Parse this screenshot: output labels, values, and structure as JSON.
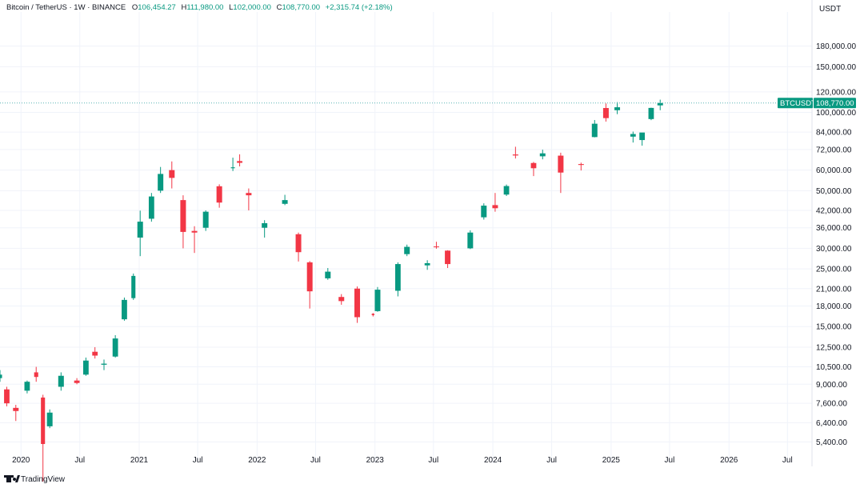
{
  "legend": {
    "symbol": "Bitcoin / TetherUS · 1W · BINANCE",
    "open_label": "O",
    "open": "106,454.27",
    "high_label": "H",
    "high": "111,980.00",
    "low_label": "L",
    "low": "102,000.00",
    "close_label": "C",
    "close": "108,770.00",
    "change": "+2,315.74 (+2.18%)"
  },
  "branding": {
    "label": "TradingView"
  },
  "price_tag": {
    "ticker": "BTCUSDT",
    "value": "108,770.00"
  },
  "colors": {
    "up": "#089981",
    "down": "#f23645",
    "grid": "#f0f3fa",
    "text": "#131722",
    "price_line": "#5ab4b4"
  },
  "chart_data": {
    "type": "candlestick",
    "y_scale": "log",
    "y_unit_label": "USDT",
    "ylim": [
      4600,
      235000
    ],
    "x_range": [
      "2019-10-28",
      "2026-09-15"
    ],
    "y_ticks": [
      {
        "value": 180000,
        "label": "180,000.00"
      },
      {
        "value": 150000,
        "label": "150,000.00"
      },
      {
        "value": 120000,
        "label": "120,000.00"
      },
      {
        "value": 100000,
        "label": "100,000.00"
      },
      {
        "value": 84000,
        "label": "84,000.00"
      },
      {
        "value": 72000,
        "label": "72,000.00"
      },
      {
        "value": 60000,
        "label": "60,000.00"
      },
      {
        "value": 50000,
        "label": "50,000.00"
      },
      {
        "value": 42000,
        "label": "42,000.00"
      },
      {
        "value": 36000,
        "label": "36,000.00"
      },
      {
        "value": 30000,
        "label": "30,000.00"
      },
      {
        "value": 25000,
        "label": "25,000.00"
      },
      {
        "value": 21000,
        "label": "21,000.00"
      },
      {
        "value": 18000,
        "label": "18,000.00"
      },
      {
        "value": 15000,
        "label": "15,000.00"
      },
      {
        "value": 12500,
        "label": "12,500.00"
      },
      {
        "value": 10500,
        "label": "10,500.00"
      },
      {
        "value": 9000,
        "label": "9,000.00"
      },
      {
        "value": 7600,
        "label": "7,600.00"
      },
      {
        "value": 6400,
        "label": "6,400.00"
      },
      {
        "value": 5400,
        "label": "5,400.00"
      }
    ],
    "x_ticks": [
      {
        "date": "2020-01-01",
        "label": "2020"
      },
      {
        "date": "2020-07-01",
        "label": "Jul"
      },
      {
        "date": "2021-01-01",
        "label": "2021"
      },
      {
        "date": "2021-07-01",
        "label": "Jul"
      },
      {
        "date": "2022-01-01",
        "label": "2022"
      },
      {
        "date": "2022-07-01",
        "label": "Jul"
      },
      {
        "date": "2023-01-01",
        "label": "2023"
      },
      {
        "date": "2023-07-01",
        "label": "Jul"
      },
      {
        "date": "2024-01-01",
        "label": "2024"
      },
      {
        "date": "2024-07-01",
        "label": "Jul"
      },
      {
        "date": "2025-01-01",
        "label": "2025"
      },
      {
        "date": "2025-07-01",
        "label": "Jul"
      },
      {
        "date": "2026-01-01",
        "label": "2026"
      },
      {
        "date": "2026-07-01",
        "label": "Jul"
      }
    ],
    "last_price": 108770,
    "candles": [
      {
        "date": "2019-10-28",
        "open": 9500,
        "high": 10200,
        "low": 9200,
        "close": 9800
      },
      {
        "date": "2019-11-18",
        "open": 8600,
        "high": 8800,
        "low": 7400,
        "close": 7600
      },
      {
        "date": "2019-12-16",
        "open": 7300,
        "high": 7500,
        "low": 6500,
        "close": 7100
      },
      {
        "date": "2020-01-20",
        "open": 8500,
        "high": 9300,
        "low": 8300,
        "close": 9200
      },
      {
        "date": "2020-02-17",
        "open": 10000,
        "high": 10500,
        "low": 9200,
        "close": 9600
      },
      {
        "date": "2020-03-09",
        "open": 8000,
        "high": 8200,
        "low": 3800,
        "close": 5300
      },
      {
        "date": "2020-03-30",
        "open": 6200,
        "high": 7200,
        "low": 6100,
        "close": 7000
      },
      {
        "date": "2020-05-04",
        "open": 8800,
        "high": 10000,
        "low": 8500,
        "close": 9700
      },
      {
        "date": "2020-06-22",
        "open": 9300,
        "high": 9500,
        "low": 9000,
        "close": 9100
      },
      {
        "date": "2020-07-20",
        "open": 9800,
        "high": 11400,
        "low": 9700,
        "close": 11100
      },
      {
        "date": "2020-08-17",
        "open": 12000,
        "high": 12500,
        "low": 11300,
        "close": 11600
      },
      {
        "date": "2020-09-14",
        "open": 10700,
        "high": 11200,
        "low": 10200,
        "close": 10800
      },
      {
        "date": "2020-10-19",
        "open": 11500,
        "high": 13900,
        "low": 11400,
        "close": 13500
      },
      {
        "date": "2020-11-16",
        "open": 16000,
        "high": 19400,
        "low": 15800,
        "close": 19000
      },
      {
        "date": "2020-12-14",
        "open": 19300,
        "high": 24000,
        "low": 19000,
        "close": 23500
      },
      {
        "date": "2021-01-04",
        "open": 33000,
        "high": 41900,
        "low": 28000,
        "close": 38000
      },
      {
        "date": "2021-02-08",
        "open": 39000,
        "high": 49000,
        "low": 38000,
        "close": 47500
      },
      {
        "date": "2021-03-08",
        "open": 50000,
        "high": 61700,
        "low": 49000,
        "close": 58000
      },
      {
        "date": "2021-04-12",
        "open": 60000,
        "high": 64800,
        "low": 51000,
        "close": 56000
      },
      {
        "date": "2021-05-17",
        "open": 46000,
        "high": 48000,
        "low": 30000,
        "close": 34700
      },
      {
        "date": "2021-06-21",
        "open": 35000,
        "high": 36500,
        "low": 28800,
        "close": 34500
      },
      {
        "date": "2021-07-26",
        "open": 36000,
        "high": 42000,
        "low": 35000,
        "close": 41500
      },
      {
        "date": "2021-09-06",
        "open": 52000,
        "high": 52900,
        "low": 43000,
        "close": 45000
      },
      {
        "date": "2021-10-18",
        "open": 61000,
        "high": 67000,
        "low": 59500,
        "close": 61500
      },
      {
        "date": "2021-11-08",
        "open": 65000,
        "high": 69000,
        "low": 62000,
        "close": 64000
      },
      {
        "date": "2021-12-06",
        "open": 49000,
        "high": 51000,
        "low": 42000,
        "close": 48000
      },
      {
        "date": "2022-01-24",
        "open": 36000,
        "high": 38500,
        "low": 33000,
        "close": 37500
      },
      {
        "date": "2022-03-28",
        "open": 44500,
        "high": 48200,
        "low": 44000,
        "close": 46000
      },
      {
        "date": "2022-05-09",
        "open": 34000,
        "high": 34500,
        "low": 26700,
        "close": 29000
      },
      {
        "date": "2022-06-13",
        "open": 26500,
        "high": 26800,
        "low": 17600,
        "close": 20500
      },
      {
        "date": "2022-08-08",
        "open": 23000,
        "high": 25200,
        "low": 22700,
        "close": 24400
      },
      {
        "date": "2022-09-19",
        "open": 19500,
        "high": 20000,
        "low": 18200,
        "close": 18800
      },
      {
        "date": "2022-11-07",
        "open": 21000,
        "high": 21400,
        "low": 15500,
        "close": 16300
      },
      {
        "date": "2022-12-26",
        "open": 16800,
        "high": 16900,
        "low": 16400,
        "close": 16600
      },
      {
        "date": "2023-01-09",
        "open": 17200,
        "high": 21300,
        "low": 17100,
        "close": 20800
      },
      {
        "date": "2023-03-13",
        "open": 20600,
        "high": 26500,
        "low": 19600,
        "close": 26100
      },
      {
        "date": "2023-04-10",
        "open": 28500,
        "high": 31000,
        "low": 28000,
        "close": 30400
      },
      {
        "date": "2023-06-12",
        "open": 25800,
        "high": 27000,
        "low": 24800,
        "close": 26300
      },
      {
        "date": "2023-07-10",
        "open": 30500,
        "high": 31800,
        "low": 29900,
        "close": 30300
      },
      {
        "date": "2023-08-14",
        "open": 29400,
        "high": 29500,
        "low": 25200,
        "close": 26100
      },
      {
        "date": "2023-10-23",
        "open": 30000,
        "high": 35200,
        "low": 29800,
        "close": 34500
      },
      {
        "date": "2023-12-04",
        "open": 39500,
        "high": 44700,
        "low": 38700,
        "close": 43800
      },
      {
        "date": "2024-01-08",
        "open": 44000,
        "high": 49000,
        "low": 41500,
        "close": 42800
      },
      {
        "date": "2024-02-12",
        "open": 48300,
        "high": 52800,
        "low": 47700,
        "close": 52100
      },
      {
        "date": "2024-03-11",
        "open": 68900,
        "high": 73800,
        "low": 66500,
        "close": 68300
      },
      {
        "date": "2024-05-06",
        "open": 63900,
        "high": 64500,
        "low": 56900,
        "close": 61000
      },
      {
        "date": "2024-06-03",
        "open": 67800,
        "high": 71900,
        "low": 66000,
        "close": 69600
      },
      {
        "date": "2024-07-29",
        "open": 68200,
        "high": 70000,
        "low": 49000,
        "close": 58700
      },
      {
        "date": "2024-09-30",
        "open": 63300,
        "high": 64100,
        "low": 59800,
        "close": 62800
      },
      {
        "date": "2024-11-11",
        "open": 80400,
        "high": 93500,
        "low": 80200,
        "close": 90500
      },
      {
        "date": "2024-12-16",
        "open": 104000,
        "high": 108300,
        "low": 92200,
        "close": 95100
      },
      {
        "date": "2025-01-20",
        "open": 102000,
        "high": 109600,
        "low": 98500,
        "close": 104700
      },
      {
        "date": "2025-03-10",
        "open": 80700,
        "high": 84400,
        "low": 76600,
        "close": 82600
      },
      {
        "date": "2025-04-07",
        "open": 78300,
        "high": 83500,
        "low": 74500,
        "close": 83700
      },
      {
        "date": "2025-05-05",
        "open": 94300,
        "high": 104300,
        "low": 93400,
        "close": 104100
      },
      {
        "date": "2025-06-02",
        "open": 106454.27,
        "high": 111980,
        "low": 102000,
        "close": 108770
      }
    ]
  }
}
